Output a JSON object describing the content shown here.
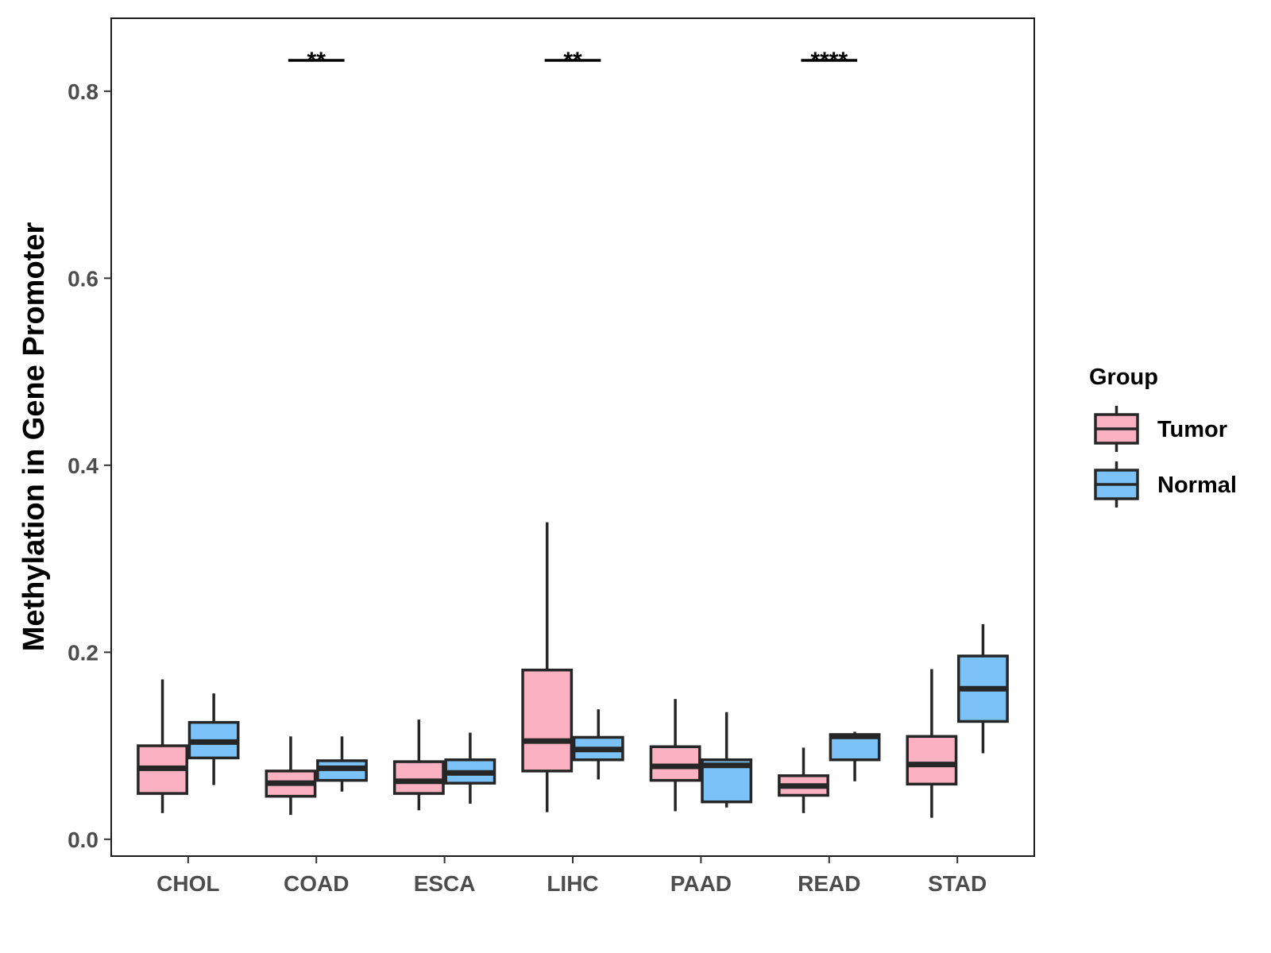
{
  "chart_data": {
    "type": "boxplot",
    "title": "",
    "xlabel": "",
    "ylabel": "Methylation in Gene Promoter",
    "ylim": [
      -0.018,
      0.878
    ],
    "yticks": [
      0.0,
      0.2,
      0.4,
      0.6,
      0.8
    ],
    "ytick_labels": [
      "0.0",
      "0.2",
      "0.4",
      "0.6",
      "0.8"
    ],
    "categories": [
      "CHOL",
      "COAD",
      "ESCA",
      "LIHC",
      "PAAD",
      "READ",
      "STAD"
    ],
    "legend": {
      "title": "Group",
      "position": "right",
      "entries": [
        {
          "name": "Tumor",
          "color": "#fbb1c1"
        },
        {
          "name": "Normal",
          "color": "#7bc2f8"
        }
      ]
    },
    "series": [
      {
        "name": "Tumor",
        "color": "#fbb1c1",
        "boxes": [
          {
            "min": 0.028,
            "q1": 0.049,
            "median": 0.076,
            "q3": 0.1,
            "max": 0.171
          },
          {
            "min": 0.026,
            "q1": 0.046,
            "median": 0.06,
            "q3": 0.073,
            "max": 0.11
          },
          {
            "min": 0.031,
            "q1": 0.049,
            "median": 0.062,
            "q3": 0.083,
            "max": 0.128
          },
          {
            "min": 0.029,
            "q1": 0.073,
            "median": 0.105,
            "q3": 0.181,
            "max": 0.339
          },
          {
            "min": 0.03,
            "q1": 0.063,
            "median": 0.078,
            "q3": 0.099,
            "max": 0.15
          },
          {
            "min": 0.028,
            "q1": 0.047,
            "median": 0.057,
            "q3": 0.068,
            "max": 0.098
          },
          {
            "min": 0.023,
            "q1": 0.059,
            "median": 0.08,
            "q3": 0.11,
            "max": 0.182
          }
        ]
      },
      {
        "name": "Normal",
        "color": "#7bc2f8",
        "boxes": [
          {
            "min": 0.058,
            "q1": 0.087,
            "median": 0.104,
            "q3": 0.125,
            "max": 0.156
          },
          {
            "min": 0.051,
            "q1": 0.063,
            "median": 0.076,
            "q3": 0.084,
            "max": 0.11
          },
          {
            "min": 0.038,
            "q1": 0.06,
            "median": 0.071,
            "q3": 0.085,
            "max": 0.114
          },
          {
            "min": 0.064,
            "q1": 0.085,
            "median": 0.096,
            "q3": 0.109,
            "max": 0.139
          },
          {
            "min": 0.034,
            "q1": 0.04,
            "median": 0.079,
            "q3": 0.085,
            "max": 0.136
          },
          {
            "min": 0.062,
            "q1": 0.085,
            "median": 0.11,
            "q3": 0.112,
            "max": 0.115
          },
          {
            "min": 0.092,
            "q1": 0.126,
            "median": 0.161,
            "q3": 0.196,
            "max": 0.23
          }
        ]
      }
    ],
    "annotations": [
      {
        "category": "COAD",
        "label": "**",
        "y": 0.833
      },
      {
        "category": "LIHC",
        "label": "**",
        "y": 0.833
      },
      {
        "category": "READ",
        "label": "****",
        "y": 0.833
      }
    ]
  }
}
